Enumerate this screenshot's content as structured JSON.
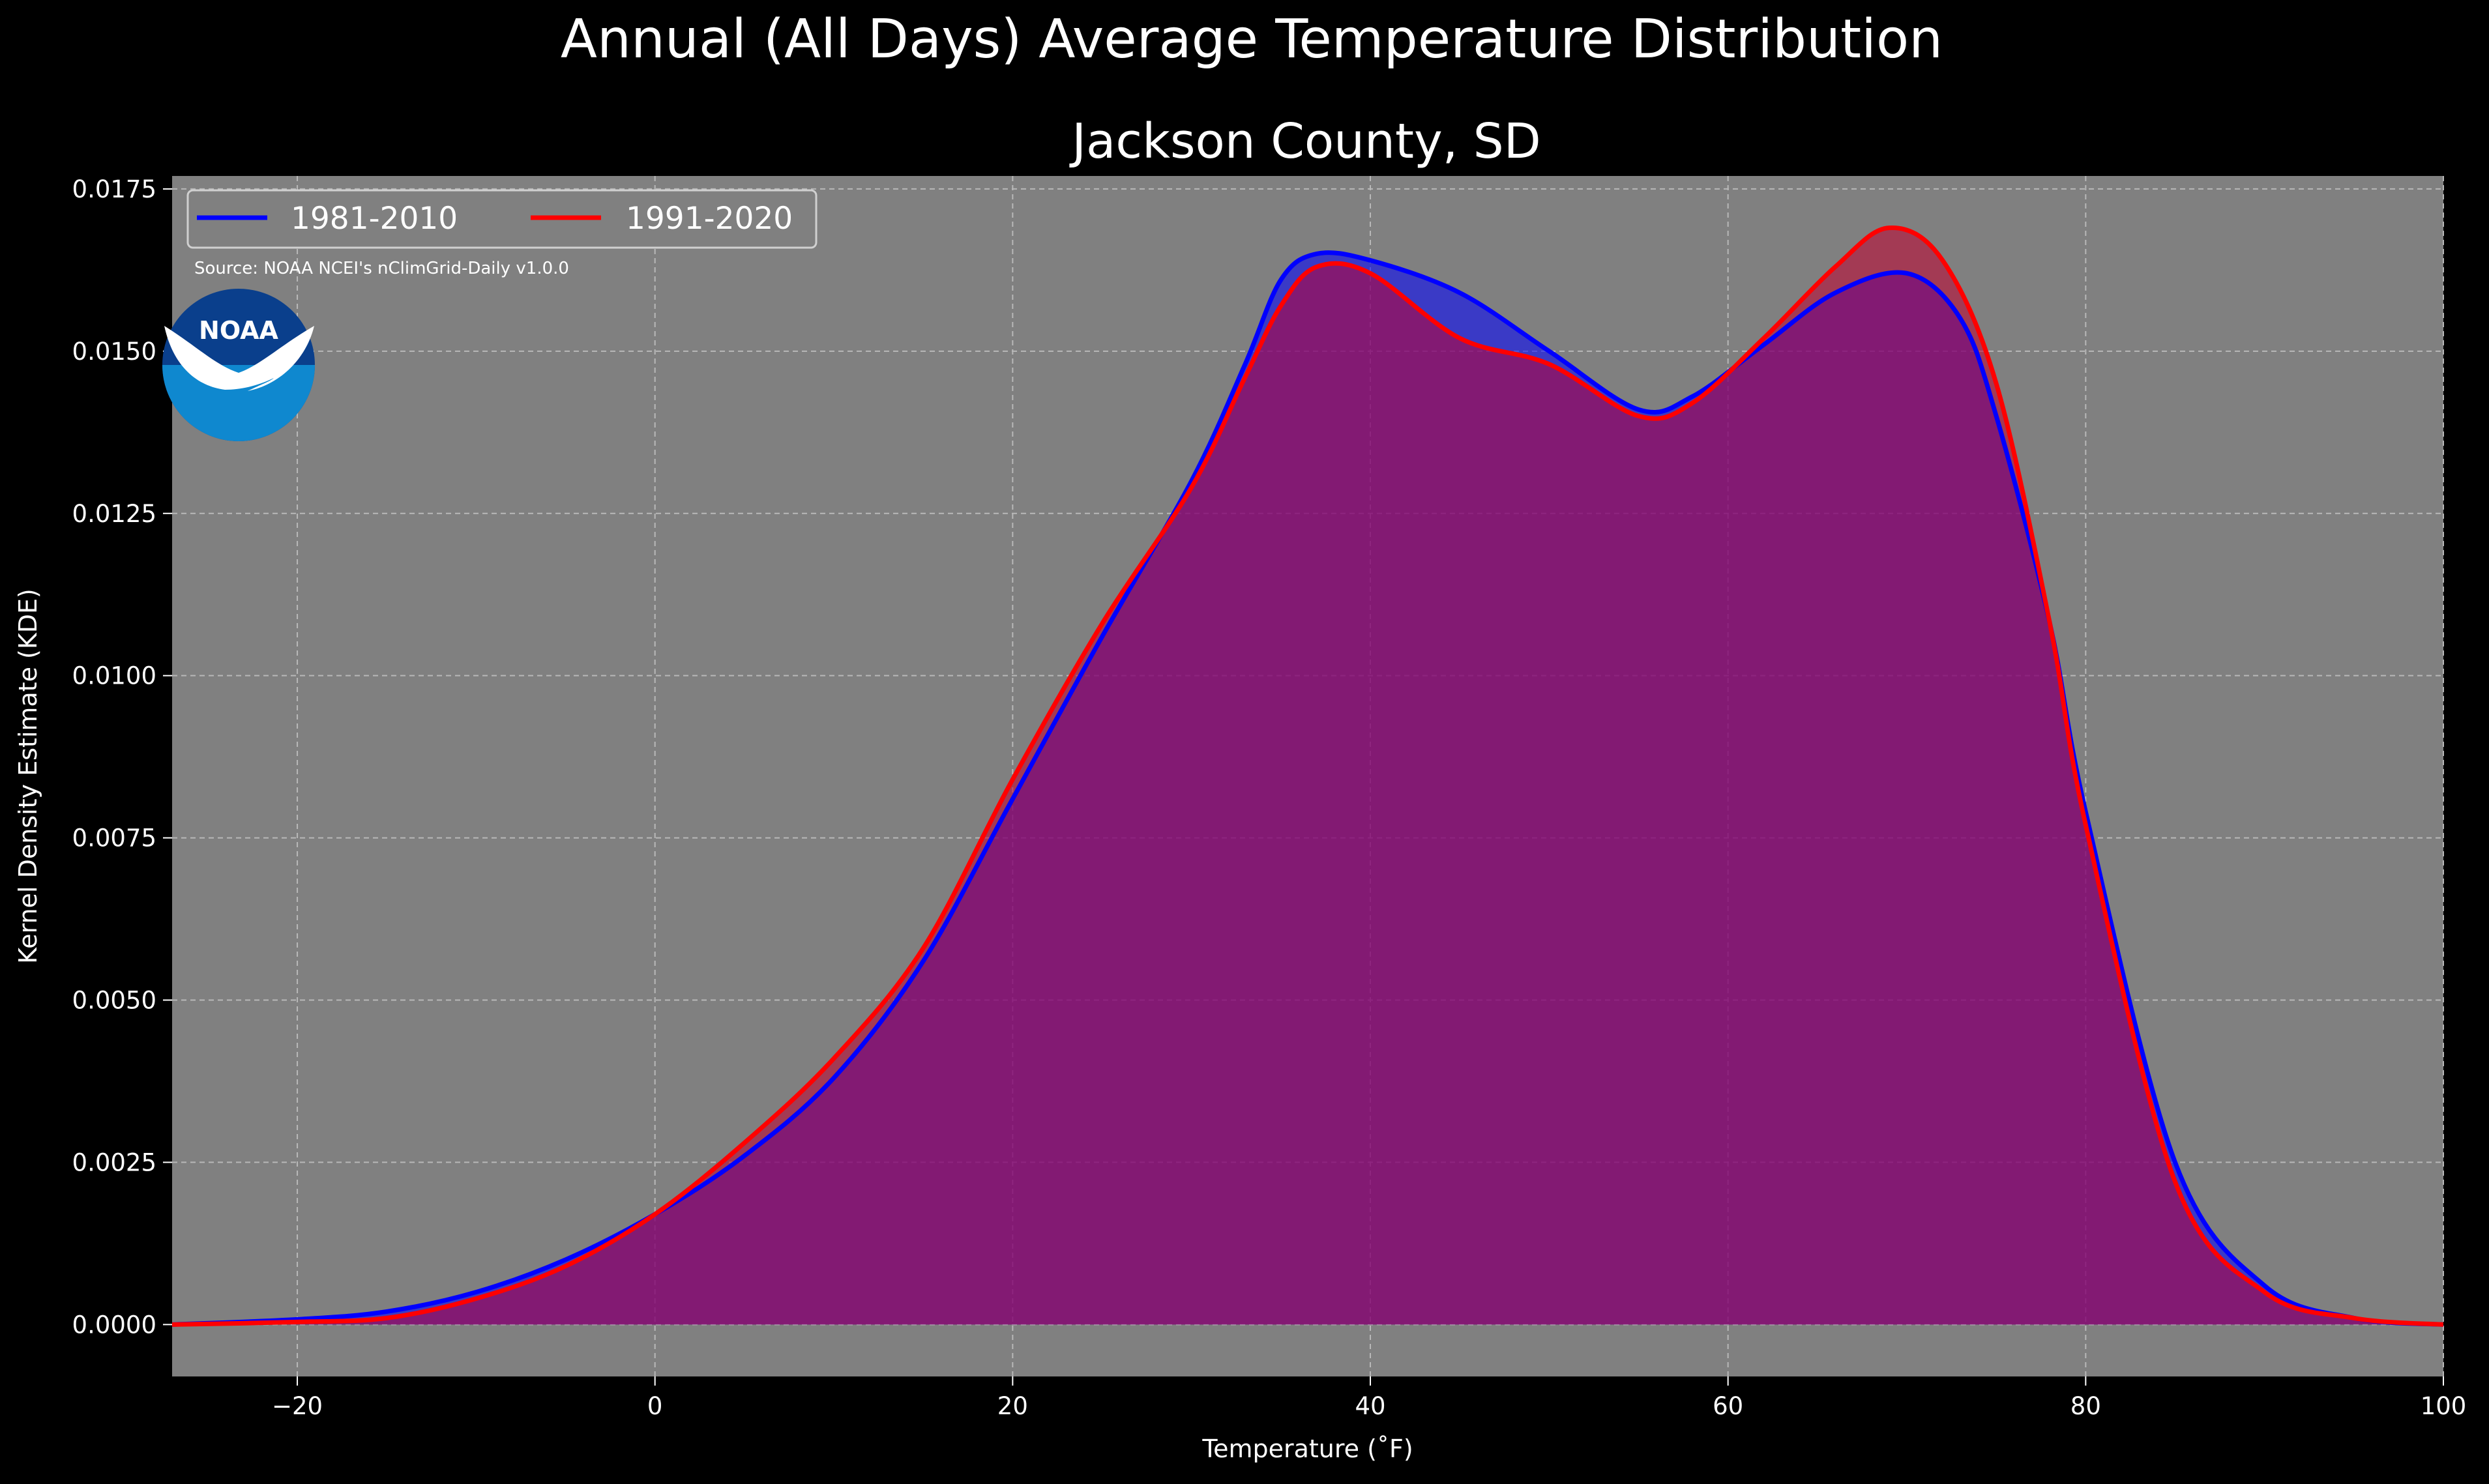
{
  "figure": {
    "suptitle": "Annual (All Days) Average Temperature Distribution",
    "background": "#000000",
    "plot_background": "#808080"
  },
  "source_note": "Source: NOAA NCEI's nClimGrid-Daily v1.0.0",
  "logo": {
    "text": "NOAA",
    "outer_color": "#0a3f8c",
    "inner_color": "#0f88cf"
  },
  "chart_data": {
    "type": "area",
    "title": "Jackson County, SD",
    "xlabel": "Temperature (˚F)",
    "ylabel": "Kernel Density Estimate (KDE)",
    "xlim": [
      -27,
      100
    ],
    "ylim": [
      -0.0008,
      0.0177
    ],
    "x_ticks": [
      -20,
      0,
      20,
      40,
      60,
      80,
      100
    ],
    "x_tick_labels": [
      "−20",
      "0",
      "20",
      "40",
      "60",
      "80",
      "100"
    ],
    "y_ticks": [
      0.0,
      0.0025,
      0.005,
      0.0075,
      0.01,
      0.0125,
      0.015,
      0.0175
    ],
    "y_tick_labels": [
      "0.0000",
      "0.0025",
      "0.0050",
      "0.0075",
      "0.0100",
      "0.0125",
      "0.0150",
      "0.0175"
    ],
    "grid": true,
    "legend": {
      "placement": "upper-left",
      "columns": 2
    },
    "series": [
      {
        "name": "1981-2010",
        "color": "#0000ff",
        "fill": "#0000ff",
        "points": [
          [
            -27,
            0.0
          ],
          [
            -20,
            8e-05
          ],
          [
            -15,
            0.0002
          ],
          [
            -10,
            0.0005
          ],
          [
            -5,
            0.001
          ],
          [
            0,
            0.0017
          ],
          [
            5,
            0.0026
          ],
          [
            10,
            0.0038
          ],
          [
            15,
            0.0056
          ],
          [
            20,
            0.0081
          ],
          [
            25,
            0.0106
          ],
          [
            30,
            0.013
          ],
          [
            33,
            0.0148
          ],
          [
            35,
            0.0161
          ],
          [
            37,
            0.0165
          ],
          [
            40,
            0.0164
          ],
          [
            45,
            0.0159
          ],
          [
            50,
            0.015
          ],
          [
            55,
            0.0141
          ],
          [
            58,
            0.0143
          ],
          [
            62,
            0.0151
          ],
          [
            66,
            0.0159
          ],
          [
            70,
            0.0162
          ],
          [
            73,
            0.0155
          ],
          [
            75,
            0.014
          ],
          [
            78,
            0.0108
          ],
          [
            80,
            0.0079
          ],
          [
            85,
            0.0025
          ],
          [
            90,
            0.0006
          ],
          [
            95,
            0.0001
          ],
          [
            100,
            0.0
          ]
        ]
      },
      {
        "name": "1991-2020",
        "color": "#ff0000",
        "fill": "#c00030",
        "points": [
          [
            -27,
            0.0
          ],
          [
            -20,
            4e-05
          ],
          [
            -15,
            0.0001
          ],
          [
            -10,
            0.0004
          ],
          [
            -5,
            0.0009
          ],
          [
            0,
            0.0017
          ],
          [
            5,
            0.0028
          ],
          [
            10,
            0.0041
          ],
          [
            15,
            0.0058
          ],
          [
            20,
            0.0084
          ],
          [
            25,
            0.0108
          ],
          [
            30,
            0.0129
          ],
          [
            33,
            0.0146
          ],
          [
            35,
            0.0157
          ],
          [
            37,
            0.0163
          ],
          [
            40,
            0.0162
          ],
          [
            45,
            0.0152
          ],
          [
            50,
            0.0148
          ],
          [
            55,
            0.014
          ],
          [
            58,
            0.0142
          ],
          [
            62,
            0.0152
          ],
          [
            66,
            0.0163
          ],
          [
            69,
            0.0169
          ],
          [
            72,
            0.0164
          ],
          [
            75,
            0.0145
          ],
          [
            78,
            0.0108
          ],
          [
            80,
            0.0077
          ],
          [
            85,
            0.0022
          ],
          [
            90,
            0.0005
          ],
          [
            95,
            0.0001
          ],
          [
            100,
            0.0
          ]
        ]
      }
    ]
  }
}
